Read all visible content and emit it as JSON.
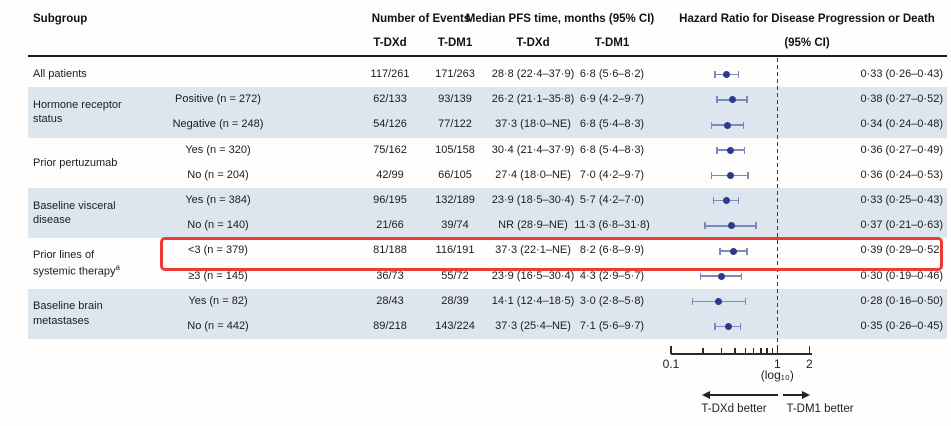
{
  "header": {
    "subgroup": "Subgroup",
    "number_of_events": "Number of Events",
    "median_pfs": "Median PFS time, months (95% CI)",
    "hazard_ratio_line1": "Hazard Ratio for Disease Progression or Death",
    "hazard_ratio_line2": "(95% CI)",
    "arm_tdxd": "T-DXd",
    "arm_tdm1": "T-DM1"
  },
  "colors": {
    "dot": "#2b3a8c",
    "whisker": "#7d88bd",
    "band": "#dde5ef",
    "highlight_border": "#ee3a35",
    "reference_line": "#3c3c3c"
  },
  "chart_data": {
    "type": "forest",
    "x_scale": "log10",
    "xlim": [
      0.1,
      2
    ],
    "reference_line": 1,
    "axis": {
      "labeled_ticks": [
        {
          "value": 0.1,
          "label": "0.1"
        },
        {
          "value": 1,
          "label": "1"
        },
        {
          "value": 2,
          "label": "2"
        }
      ],
      "minor_ticks": [
        0.2,
        0.3,
        0.4,
        0.5,
        0.6,
        0.7,
        0.8,
        0.9
      ],
      "scale_label": "(log₁₀)",
      "left_arrow_label": "T-DXd better",
      "right_arrow_label": "T-DM1 better"
    },
    "groups": [
      {
        "lines": [
          "All patients"
        ],
        "sup": "",
        "start": 0,
        "count": 1,
        "shaded": false
      },
      {
        "lines": [
          "Hormone receptor",
          "status"
        ],
        "sup": "",
        "start": 1,
        "count": 2,
        "shaded": true
      },
      {
        "lines": [
          "Prior pertuzumab"
        ],
        "sup": "",
        "start": 3,
        "count": 2,
        "shaded": false
      },
      {
        "lines": [
          "Baseline visceral",
          "disease"
        ],
        "sup": "",
        "start": 5,
        "count": 2,
        "shaded": true
      },
      {
        "lines": [
          "Prior lines of",
          "systemic therapy"
        ],
        "sup": "a",
        "start": 7,
        "count": 2,
        "shaded": false
      },
      {
        "lines": [
          "Baseline brain",
          "metastases"
        ],
        "sup": "",
        "start": 9,
        "count": 2,
        "shaded": true
      }
    ],
    "rows": [
      {
        "level": "",
        "events_tdxd": "117/261",
        "events_tdm1": "171/263",
        "pfs_tdxd": "28·8 (22·4–37·9)",
        "pfs_tdm1": "6·8 (5·6–8·2)",
        "hr": 0.33,
        "lo": 0.26,
        "hi": 0.43,
        "hr_text": "0·33 (0·26–0·43)",
        "highlight": false
      },
      {
        "level": "Positive (n = 272)",
        "events_tdxd": "62/133",
        "events_tdm1": "93/139",
        "pfs_tdxd": "26·2 (21·1–35·8)",
        "pfs_tdm1": "6·9 (4·2–9·7)",
        "hr": 0.38,
        "lo": 0.27,
        "hi": 0.52,
        "hr_text": "0·38 (0·27–0·52)",
        "highlight": false
      },
      {
        "level": "Negative (n = 248)",
        "events_tdxd": "54/126",
        "events_tdm1": "77/122",
        "pfs_tdxd": "37·3 (18·0–NE)",
        "pfs_tdm1": "6·8 (5·4–8·3)",
        "hr": 0.34,
        "lo": 0.24,
        "hi": 0.48,
        "hr_text": "0·34 (0·24–0·48)",
        "highlight": false
      },
      {
        "level": "Yes (n = 320)",
        "events_tdxd": "75/162",
        "events_tdm1": "105/158",
        "pfs_tdxd": "30·4 (21·4–37·9)",
        "pfs_tdm1": "6·8 (5·4–8·3)",
        "hr": 0.36,
        "lo": 0.27,
        "hi": 0.49,
        "hr_text": "0·36 (0·27–0·49)",
        "highlight": false
      },
      {
        "level": "No (n = 204)",
        "events_tdxd": "42/99",
        "events_tdm1": "66/105",
        "pfs_tdxd": "27·4 (18·0–NE)",
        "pfs_tdm1": "7·0 (4·2–9·7)",
        "hr": 0.36,
        "lo": 0.24,
        "hi": 0.53,
        "hr_text": "0·36 (0·24–0·53)",
        "highlight": false
      },
      {
        "level": "Yes (n = 384)",
        "events_tdxd": "96/195",
        "events_tdm1": "132/189",
        "pfs_tdxd": "23·9 (18·5–30·4)",
        "pfs_tdm1": "5·7 (4·2–7·0)",
        "hr": 0.33,
        "lo": 0.25,
        "hi": 0.43,
        "hr_text": "0·33 (0·25–0·43)",
        "highlight": false
      },
      {
        "level": "No (n = 140)",
        "events_tdxd": "21/66",
        "events_tdm1": "39/74",
        "pfs_tdxd": "NR (28·9–NE)",
        "pfs_tdm1": "11·3 (6·8–31·8)",
        "hr": 0.37,
        "lo": 0.21,
        "hi": 0.63,
        "hr_text": "0·37 (0·21–0·63)",
        "highlight": false
      },
      {
        "level": "<3 (n = 379)",
        "events_tdxd": "81/188",
        "events_tdm1": "116/191",
        "pfs_tdxd": "37·3 (22·1–NE)",
        "pfs_tdm1": "8·2 (6·8–9·9)",
        "hr": 0.39,
        "lo": 0.29,
        "hi": 0.52,
        "hr_text": "0·39 (0·29–0·52)",
        "highlight": true
      },
      {
        "level": "≥3 (n = 145)",
        "events_tdxd": "36/73",
        "events_tdm1": "55/72",
        "pfs_tdxd": "23·9 (16·5–30·4)",
        "pfs_tdm1": "4·3 (2·9–5·7)",
        "hr": 0.3,
        "lo": 0.19,
        "hi": 0.46,
        "hr_text": "0·30 (0·19–0·46)",
        "highlight": false
      },
      {
        "level": "Yes (n = 82)",
        "events_tdxd": "28/43",
        "events_tdm1": "28/39",
        "pfs_tdxd": "14·1 (12·4–18·5)",
        "pfs_tdm1": "3·0 (2·8–5·8)",
        "hr": 0.28,
        "lo": 0.16,
        "hi": 0.5,
        "hr_text": "0·28 (0·16–0·50)",
        "highlight": false
      },
      {
        "level": "No (n = 442)",
        "events_tdxd": "89/218",
        "events_tdm1": "143/224",
        "pfs_tdxd": "37·3 (25·4–NE)",
        "pfs_tdm1": "7·1 (5·6–9·7)",
        "hr": 0.35,
        "lo": 0.26,
        "hi": 0.45,
        "hr_text": "0·35 (0·26–0·45)",
        "highlight": false
      }
    ]
  }
}
